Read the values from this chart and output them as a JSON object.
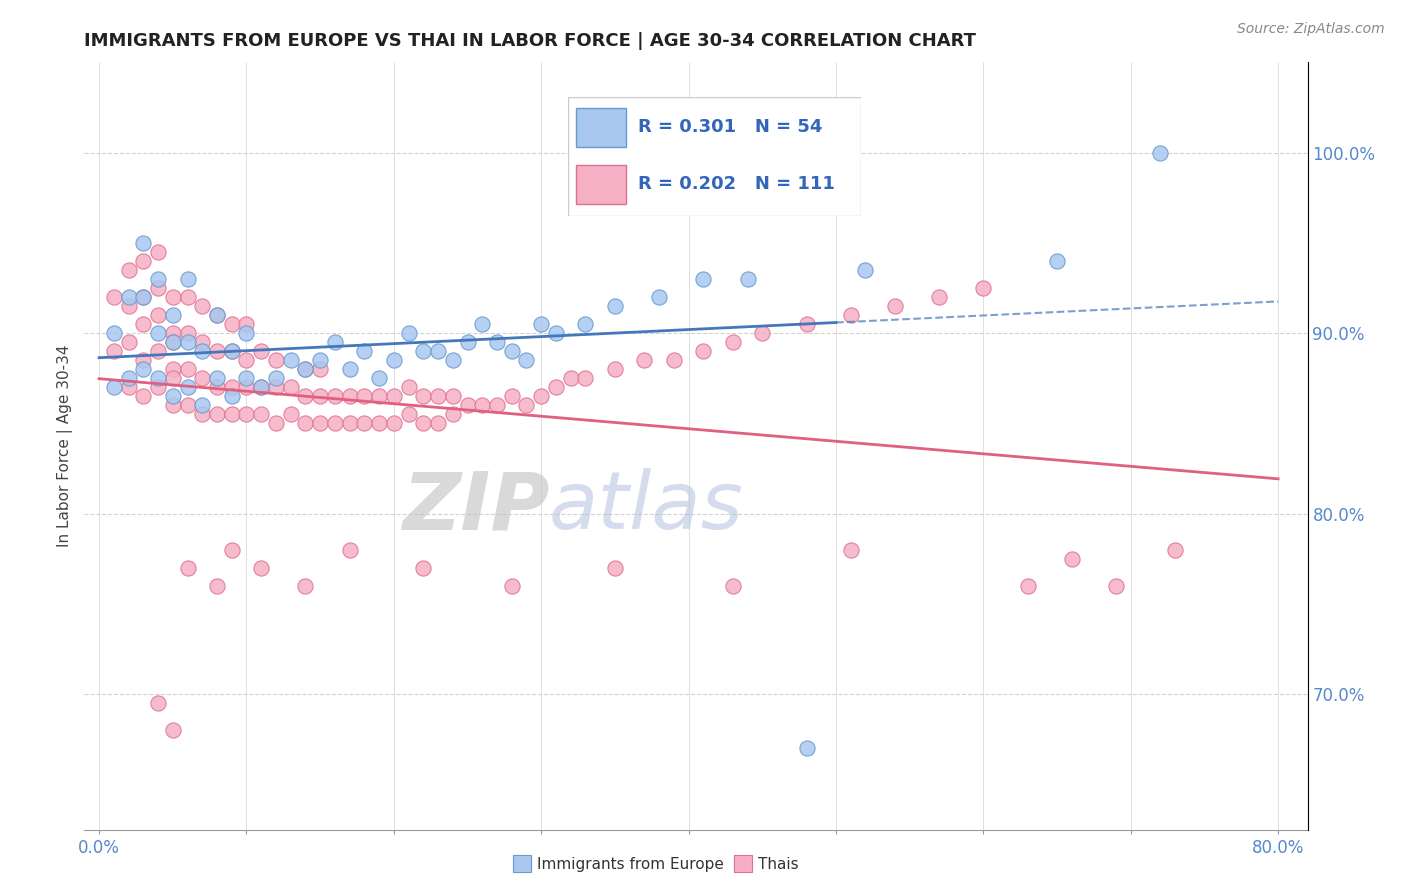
{
  "title": "IMMIGRANTS FROM EUROPE VS THAI IN LABOR FORCE | AGE 30-34 CORRELATION CHART",
  "source_text": "Source: ZipAtlas.com",
  "ylabel": "In Labor Force | Age 30-34",
  "xlim": [
    -0.01,
    0.82
  ],
  "ylim": [
    0.625,
    1.05
  ],
  "xticks": [
    0.0,
    0.1,
    0.2,
    0.3,
    0.4,
    0.5,
    0.6,
    0.7,
    0.8
  ],
  "xticklabels": [
    "0.0%",
    "",
    "",
    "",
    "",
    "",
    "",
    "",
    "80.0%"
  ],
  "yticks_right": [
    0.7,
    0.8,
    0.9,
    1.0
  ],
  "ytick_labels_right": [
    "70.0%",
    "80.0%",
    "90.0%",
    "100.0%"
  ],
  "R_blue": 0.301,
  "N_blue": 54,
  "R_pink": 0.202,
  "N_pink": 111,
  "blue_color": "#A8C8F0",
  "pink_color": "#F5B0C5",
  "blue_edge_color": "#6699CC",
  "pink_edge_color": "#E07090",
  "blue_line_color": "#4477BB",
  "pink_line_color": "#E06080",
  "watermark_zip_color": "#BBBBBB",
  "watermark_atlas_color": "#AABBDD",
  "legend_blue_label": "Immigrants from Europe",
  "legend_pink_label": "Thais"
}
